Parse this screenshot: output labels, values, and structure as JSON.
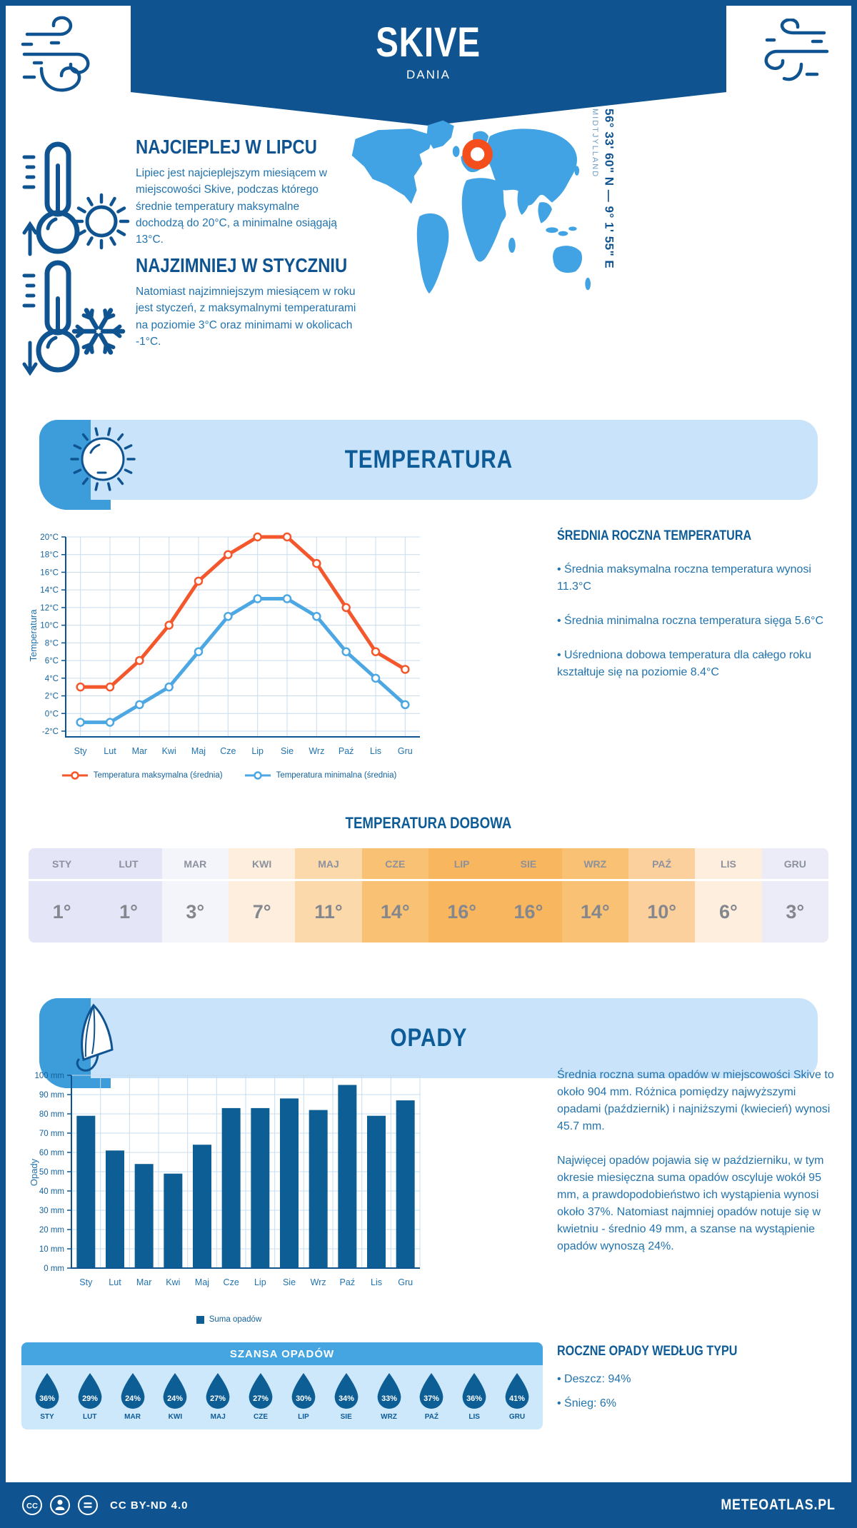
{
  "header": {
    "city": "SKIVE",
    "country": "DANIA"
  },
  "location": {
    "coordinates": "56° 33' 60\" N — 9° 1' 55\" E",
    "region": "MIDTJYLLAND"
  },
  "highlights": {
    "warm": {
      "title": "NAJCIEPLEJ W LIPCU",
      "text": "Lipiec jest najcieplejszym miesiącem w miejscowości Skive, podczas którego średnie temperatury maksymalne dochodzą do 20°C, a minimalne osiągają 13°C."
    },
    "cold": {
      "title": "NAJZIMNIEJ W STYCZNIU",
      "text": "Natomiast najzimniejszym miesiącem w roku jest styczeń, z maksymalnymi temperaturami na poziomie 3°C oraz minimami w okolicach -1°C."
    }
  },
  "temperature": {
    "section_title": "TEMPERATURA",
    "annual_title": "ŚREDNIA ROCZNA TEMPERATURA",
    "bullets": [
      "• Średnia maksymalna roczna temperatura wynosi 11.3°C",
      "• Średnia minimalna roczna temperatura sięga 5.6°C",
      "• Uśredniona dobowa temperatura dla całego roku kształtuje się na poziomie 8.4°C"
    ],
    "daily": {
      "title": "TEMPERATURA DOBOWA",
      "months": [
        "STY",
        "LUT",
        "MAR",
        "KWI",
        "MAJ",
        "CZE",
        "LIP",
        "SIE",
        "WRZ",
        "PAŹ",
        "LIS",
        "GRU"
      ],
      "values": [
        "1°",
        "1°",
        "3°",
        "7°",
        "11°",
        "14°",
        "16°",
        "16°",
        "14°",
        "10°",
        "6°",
        "3°"
      ],
      "cell_colors": [
        "#e4e5f6",
        "#e4e5f6",
        "#f4f5fb",
        "#fdeede",
        "#fbd9ab",
        "#f9c173",
        "#f8b65f",
        "#f8b65f",
        "#f9c173",
        "#fbd09c",
        "#fdeede",
        "#ebecf8"
      ]
    }
  },
  "precipitation": {
    "section_title": "OPADY",
    "paragraph1": "Średnia roczna suma opadów w miejscowości Skive to około 904 mm. Różnica pomiędzy najwyższymi opadami (październik) i najniższymi (kwiecień) wynosi 45.7 mm.",
    "paragraph2": "Najwięcej opadów pojawia się w październiku, w tym okresie miesięczna suma opadów oscyluje wokół 95 mm, a prawdopodobieństwo ich wystąpienia wynosi około 37%. Natomiast najmniej opadów notuje się w kwietniu - średnio 49 mm, a szanse na wystąpienie opadów wynoszą 24%.",
    "chance": {
      "title": "SZANSA OPADÓW",
      "months": [
        "STY",
        "LUT",
        "MAR",
        "KWI",
        "MAJ",
        "CZE",
        "LIP",
        "SIE",
        "WRZ",
        "PAŹ",
        "LIS",
        "GRU"
      ],
      "values": [
        "36%",
        "29%",
        "24%",
        "24%",
        "27%",
        "27%",
        "30%",
        "34%",
        "33%",
        "37%",
        "36%",
        "41%"
      ]
    },
    "by_type": {
      "title": "ROCZNE OPADY WEDŁUG TYPU",
      "bullets": [
        "• Deszcz: 94%",
        "• Śnieg: 6%"
      ]
    }
  },
  "chart_data": [
    {
      "type": "line",
      "name": "srednie-temperatury-miesieczne",
      "categories": [
        "Sty",
        "Lut",
        "Mar",
        "Kwi",
        "Maj",
        "Cze",
        "Lip",
        "Sie",
        "Wrz",
        "Paź",
        "Lis",
        "Gru"
      ],
      "series": [
        {
          "name": "Temperatura maksymalna (średnia)",
          "color": "#f4572c",
          "values": [
            3,
            3,
            6,
            10,
            15,
            18,
            20,
            20,
            17,
            12,
            7,
            5
          ]
        },
        {
          "name": "Temperatura minimalna (średnia)",
          "color": "#4da7e3",
          "values": [
            -1,
            -1,
            1,
            3,
            7,
            11,
            13,
            13,
            11,
            7,
            4,
            1
          ]
        }
      ],
      "ylabel": "Temperatura",
      "ylim": [
        -2,
        20
      ],
      "ytick_step": 2,
      "ytick_suffix": "°C",
      "grid": true,
      "legend_position": "bottom"
    },
    {
      "type": "bar",
      "name": "suma-opadow-miesieczna",
      "categories": [
        "Sty",
        "Lut",
        "Mar",
        "Kwi",
        "Maj",
        "Cze",
        "Lip",
        "Sie",
        "Wrz",
        "Paź",
        "Lis",
        "Gru"
      ],
      "series": [
        {
          "name": "Suma opadów",
          "color": "#0d5e95",
          "values": [
            79,
            61,
            54,
            49,
            64,
            83,
            83,
            88,
            82,
            95,
            79,
            87
          ]
        }
      ],
      "ylabel": "Opady",
      "ylim": [
        0,
        100
      ],
      "ytick_step": 10,
      "ytick_suffix": " mm",
      "grid": true,
      "legend_position": "bottom"
    }
  ],
  "footer": {
    "license": "CC BY-ND 4.0",
    "brand": "METEOATLAS.PL"
  },
  "colors": {
    "navy": "#0f5490",
    "body_blue": "#2273ad",
    "banner_light": "#c8e3fa",
    "banner_accent": "#3d9cda",
    "map_blue": "#41a3e3",
    "marker_orange": "#f44e1c",
    "grid": "#c9dcec",
    "bar": "#0d5e95",
    "line_max": "#f4572c",
    "line_min": "#4da7e3"
  }
}
